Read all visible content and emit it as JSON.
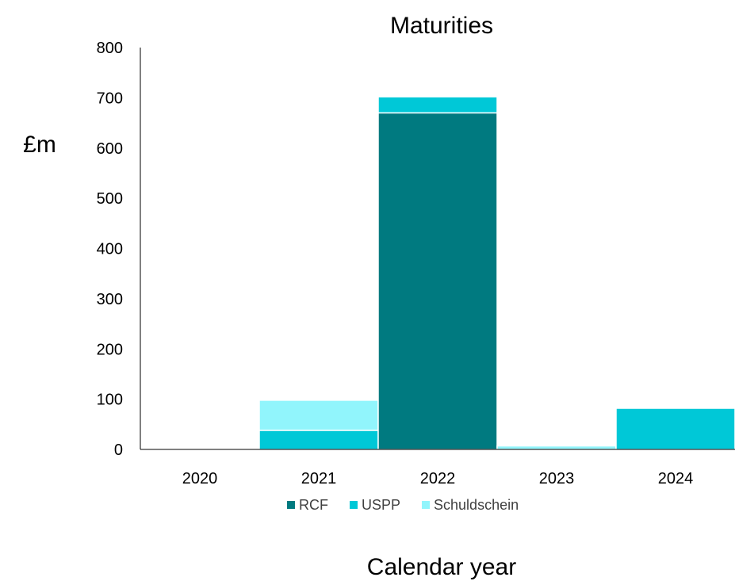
{
  "chart_data": {
    "type": "bar",
    "stacked": true,
    "title": "Maturities",
    "ylabel": "£m",
    "xlabel": "Calendar year",
    "categories": [
      "2020",
      "2021",
      "2022",
      "2023",
      "2024"
    ],
    "ylim": [
      0,
      800
    ],
    "yticks": [
      0,
      100,
      200,
      300,
      400,
      500,
      600,
      700,
      800
    ],
    "grid": false,
    "legend_position": "bottom",
    "series": [
      {
        "name": "RCF",
        "color": "#007A80",
        "values": [
          0,
          0,
          670,
          0,
          0
        ]
      },
      {
        "name": "USPP",
        "color": "#00C8D7",
        "values": [
          0,
          38,
          32,
          0,
          82
        ]
      },
      {
        "name": "Schuldschein",
        "color": "#91F5FC",
        "values": [
          0,
          60,
          0,
          7,
          0
        ]
      }
    ]
  }
}
